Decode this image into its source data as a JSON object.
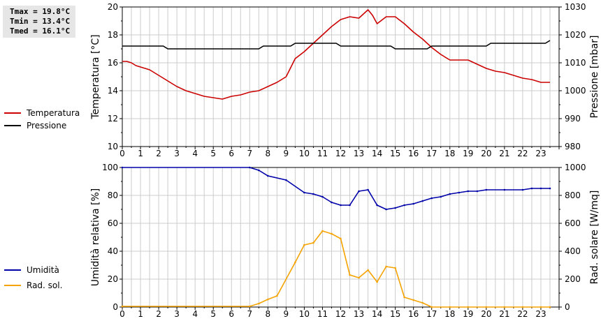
{
  "stats": {
    "tmax": "Tmax = 19.8°C",
    "tmin": "Tmin = 13.4°C",
    "tmed": "Tmed = 16.1°C"
  },
  "colors": {
    "temperatura": "#cc0000",
    "pressione": "#000000",
    "umidita": "#0000aa",
    "radiazione": "#f5a300",
    "grid": "#cccccc"
  },
  "chart_data": [
    {
      "type": "line",
      "x_ticks": [
        "0",
        "1",
        "2",
        "3",
        "4",
        "5",
        "6",
        "7",
        "8",
        "9",
        "10",
        "11",
        "12",
        "13",
        "14",
        "15",
        "16",
        "17",
        "18",
        "19",
        "20",
        "21",
        "22",
        "23"
      ],
      "xlim": [
        0,
        24
      ],
      "ylabel": "Temperatura [°C]",
      "y_ticks": [
        "10",
        "12",
        "14",
        "16",
        "18",
        "20"
      ],
      "ylim": [
        10,
        20
      ],
      "y2label": "Pressione [mbar]",
      "y2_ticks": [
        "980",
        "990",
        "1000",
        "1010",
        "1020",
        "1030"
      ],
      "y2lim": [
        980,
        1030
      ],
      "grid": true,
      "legend_placement": "left",
      "series": [
        {
          "name": "Temperatura",
          "axis": "left",
          "x": [
            0,
            0.25,
            0.5,
            0.75,
            1,
            1.25,
            1.5,
            2,
            2.5,
            3,
            3.5,
            4,
            4.5,
            5,
            5.5,
            6,
            6.5,
            7,
            7.5,
            8,
            8.5,
            9,
            9.5,
            10,
            10.5,
            11,
            11.5,
            12,
            12.5,
            13,
            13.25,
            13.5,
            13.75,
            14,
            14.5,
            15,
            15.5,
            16,
            16.5,
            17,
            17.5,
            18,
            18.5,
            19,
            19.5,
            20,
            20.5,
            21,
            21.5,
            22,
            22.5,
            23,
            23.5
          ],
          "values": [
            16.1,
            16.1,
            16.0,
            15.8,
            15.7,
            15.6,
            15.5,
            15.1,
            14.7,
            14.3,
            14.0,
            13.8,
            13.6,
            13.5,
            13.4,
            13.6,
            13.7,
            13.9,
            14.0,
            14.3,
            14.6,
            15.0,
            16.3,
            16.8,
            17.4,
            18.0,
            18.6,
            19.1,
            19.3,
            19.2,
            19.5,
            19.8,
            19.4,
            18.8,
            19.3,
            19.3,
            18.8,
            18.2,
            17.7,
            17.1,
            16.6,
            16.2,
            16.2,
            16.2,
            15.9,
            15.6,
            15.4,
            15.3,
            15.1,
            14.9,
            14.8,
            14.6,
            14.6
          ]
        },
        {
          "name": "Pressione",
          "axis": "right",
          "x": [
            0,
            2.25,
            2.5,
            7.5,
            7.75,
            9.25,
            9.5,
            11.75,
            12,
            14.75,
            15,
            16.75,
            17,
            20,
            20.25,
            23.25,
            23.5
          ],
          "values": [
            1016,
            1016,
            1015,
            1015,
            1016,
            1016,
            1017,
            1017,
            1016,
            1016,
            1015,
            1015,
            1016,
            1016,
            1017,
            1017,
            1018
          ]
        }
      ]
    },
    {
      "type": "line",
      "x_ticks": [
        "0",
        "1",
        "2",
        "3",
        "4",
        "5",
        "6",
        "7",
        "8",
        "9",
        "10",
        "11",
        "12",
        "13",
        "14",
        "15",
        "16",
        "17",
        "18",
        "19",
        "20",
        "21",
        "22",
        "23"
      ],
      "xlim": [
        0,
        24
      ],
      "ylabel": "Umidità relativa [%]",
      "y_ticks": [
        "0",
        "20",
        "40",
        "60",
        "80",
        "100"
      ],
      "ylim": [
        0,
        100
      ],
      "y2label": "Rad. solare [W/mq]",
      "y2_ticks": [
        "0",
        "200",
        "400",
        "600",
        "800",
        "1000"
      ],
      "y2lim": [
        0,
        1000
      ],
      "grid": true,
      "legend_placement": "left",
      "series": [
        {
          "name": "Umidità",
          "axis": "left",
          "x": [
            0,
            7,
            7.5,
            8,
            9,
            10,
            10.5,
            11,
            11.5,
            12,
            12.5,
            13,
            13.5,
            14,
            14.5,
            15,
            15.5,
            16,
            16.5,
            17,
            17.5,
            18,
            18.5,
            19,
            19.5,
            20,
            21,
            22,
            22.5,
            23,
            23.5
          ],
          "values": [
            100,
            100,
            98,
            94,
            91,
            82,
            81,
            79,
            75,
            73,
            73,
            83,
            84,
            73,
            70,
            71,
            73,
            74,
            76,
            78,
            79,
            81,
            82,
            83,
            83,
            84,
            84,
            84,
            85,
            85,
            85
          ],
          "markers": true
        },
        {
          "name": "Rad. sol.",
          "axis": "right",
          "x": [
            0,
            7,
            7.5,
            8,
            8.5,
            9.5,
            10,
            10.5,
            11,
            11.5,
            12,
            12.5,
            13,
            13.5,
            14,
            14.5,
            15,
            15.5,
            16,
            16.5,
            17,
            18,
            19,
            20,
            21,
            22,
            23,
            23.5
          ],
          "values": [
            5,
            5,
            25,
            55,
            80,
            320,
            445,
            460,
            545,
            525,
            490,
            230,
            210,
            265,
            180,
            290,
            280,
            70,
            50,
            30,
            0,
            0,
            0,
            0,
            0,
            0,
            0,
            0
          ],
          "markers": true
        }
      ]
    }
  ]
}
